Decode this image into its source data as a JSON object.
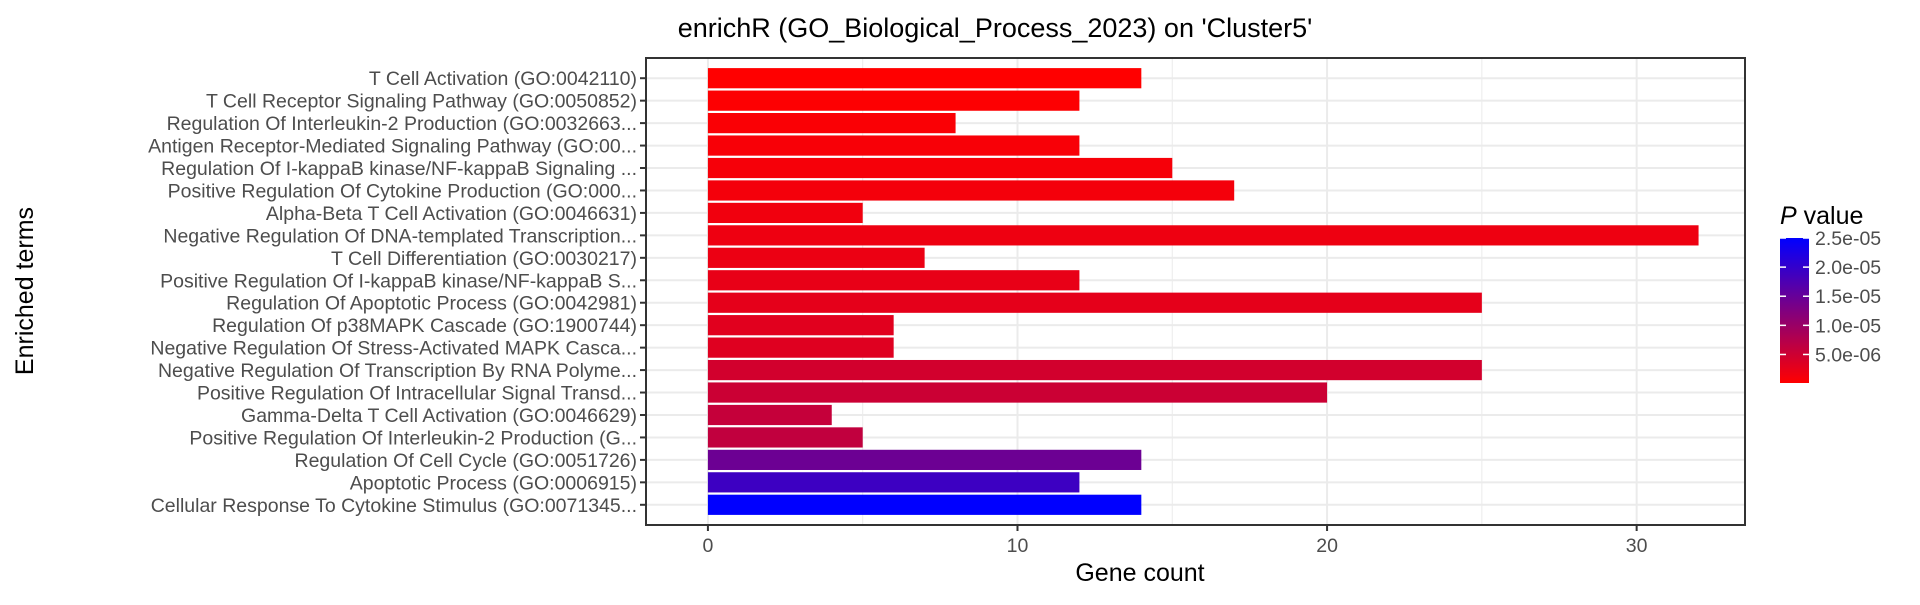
{
  "chart_data": {
    "type": "bar",
    "orientation": "horizontal",
    "title": "enrichR (GO_Biological_Process_2023) on 'Cluster5'",
    "xlabel": "Gene count",
    "ylabel": "Enriched terms",
    "xlim": [
      -2,
      33.5
    ],
    "xticks": [
      0,
      10,
      20,
      30
    ],
    "grid": true,
    "legend": {
      "title_italic": "P",
      "title_rest": " value",
      "placement": "right",
      "ticks": [
        "2.5e-05",
        "2.0e-05",
        "1.5e-05",
        "1.0e-05",
        "5.0e-06"
      ],
      "tick_values": [
        2.5e-05,
        2e-05,
        1.5e-05,
        1e-05,
        5e-06
      ],
      "range": [
        1e-07,
        2.5e-05
      ],
      "low_color": "#ff0000",
      "high_color": "#0000ff"
    },
    "categories": [
      "T Cell Activation (GO:0042110)",
      "T Cell Receptor Signaling Pathway (GO:0050852)",
      "Regulation Of Interleukin-2 Production (GO:0032663...",
      "Antigen Receptor-Mediated Signaling Pathway (GO:00...",
      "Regulation Of I-kappaB kinase/NF-kappaB Signaling ...",
      "Positive Regulation Of Cytokine Production (GO:000...",
      "Alpha-Beta T Cell Activation (GO:0046631)",
      "Negative Regulation Of DNA-templated Transcription...",
      "T Cell Differentiation (GO:0030217)",
      "Positive Regulation Of I-kappaB kinase/NF-kappaB S...",
      "Regulation Of Apoptotic Process (GO:0042981)",
      "Regulation Of p38MAPK Cascade (GO:1900744)",
      "Negative Regulation Of Stress-Activated MAPK Casca...",
      "Negative Regulation Of Transcription By RNA Polyme...",
      "Positive Regulation Of Intracellular Signal Transd...",
      "Gamma-Delta T Cell Activation (GO:0046629)",
      "Positive Regulation Of Interleukin-2 Production (G...",
      "Regulation Of Cell Cycle (GO:0051726)",
      "Apoptotic Process (GO:0006915)",
      "Cellular Response To Cytokine Stimulus (GO:0071345..."
    ],
    "values": [
      14,
      12,
      8,
      12,
      15,
      17,
      5,
      32,
      7,
      12,
      25,
      6,
      6,
      25,
      20,
      4,
      5,
      14,
      12,
      14
    ],
    "p_values": [
      1e-07,
      3e-07,
      6e-07,
      8e-07,
      1e-06,
      1.2e-06,
      1.5e-06,
      1.8e-06,
      2e-06,
      2.3e-06,
      2.6e-06,
      3e-06,
      3.2e-06,
      4.5e-06,
      5.2e-06,
      5.8e-06,
      6.2e-06,
      1.45e-05,
      1.9e-05,
      2.5e-05
    ]
  }
}
